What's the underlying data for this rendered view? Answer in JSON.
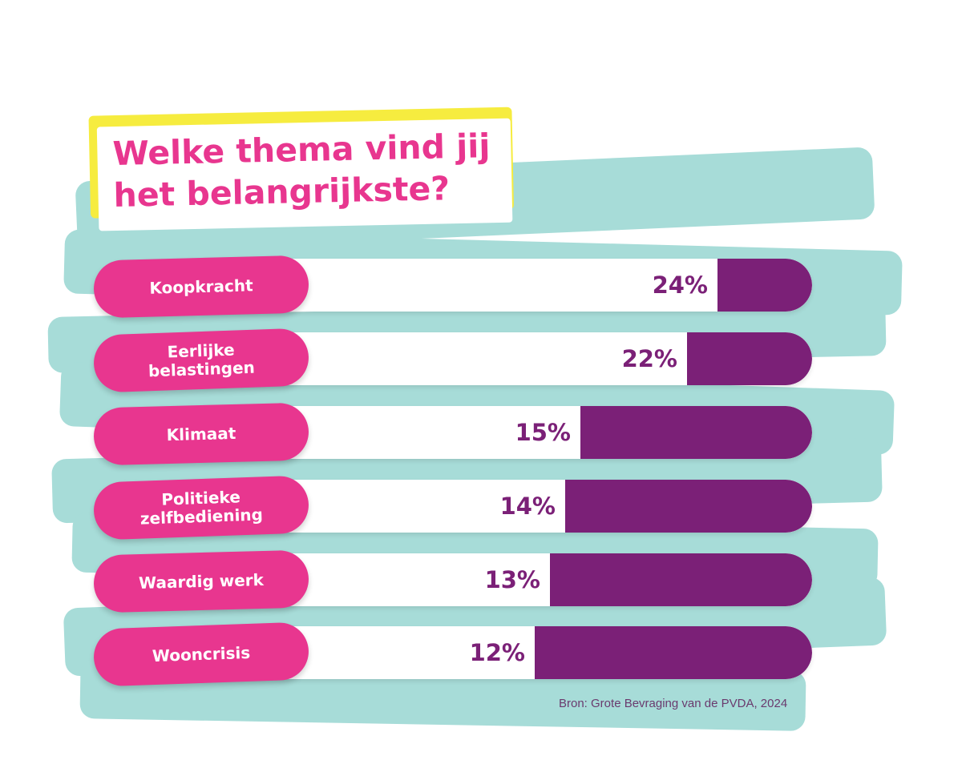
{
  "chart_data": {
    "type": "bar",
    "orientation": "horizontal",
    "title": "Welke thema vind jij\nhet belangrijkste?",
    "categories": [
      "Koopkracht",
      "Eerlijke\nbelastingen",
      "Klimaat",
      "Politieke\nzelfbediening",
      "Waardig werk",
      "Wooncrisis"
    ],
    "values": [
      24,
      22,
      15,
      14,
      13,
      12
    ],
    "value_labels": [
      "24%",
      "22%",
      "15%",
      "14%",
      "13%",
      "12%"
    ],
    "unit": "%",
    "source": "Bron: Grote Bevraging van de PVDA, 2024",
    "grid": false,
    "legend": "none"
  },
  "colors": {
    "category_pill": "#e8368f",
    "bar_fill": "#7b2077",
    "value_text": "#7b2077",
    "title_text": "#e8368f",
    "title_highlight": "#f6ec3f",
    "brush_background": "#a7dcd8"
  }
}
